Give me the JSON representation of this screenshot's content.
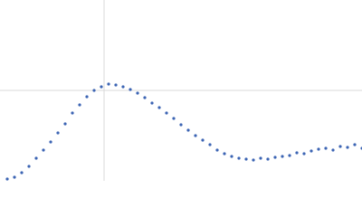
{
  "chart_data": {
    "type": "scatter",
    "color": "#3b64b3",
    "x": [
      8,
      16,
      24,
      32,
      40,
      48,
      56,
      64,
      72,
      80,
      88,
      96,
      104,
      112,
      120,
      128,
      136,
      144,
      152,
      160,
      168,
      176,
      184,
      192,
      200,
      208,
      216,
      224,
      232,
      240,
      248,
      256,
      264,
      272,
      280,
      288,
      296,
      304,
      312,
      320,
      328,
      336,
      344,
      352,
      360,
      368,
      376,
      384,
      392,
      400
    ],
    "y": [
      2,
      4,
      9,
      16,
      25,
      34,
      43,
      53,
      63,
      75,
      84,
      93,
      100,
      104,
      107,
      106,
      104,
      101,
      97,
      92,
      86,
      81,
      75,
      69,
      62,
      56,
      50,
      45,
      40,
      34,
      30,
      27,
      25,
      24,
      23,
      25,
      24,
      26,
      27,
      28,
      31,
      30,
      33,
      35,
      36,
      34,
      38,
      37,
      40,
      36
    ],
    "xlim": [
      0,
      400
    ],
    "ylim": [
      0,
      200
    ],
    "xticks": [
      115
    ],
    "yticks": [
      100
    ],
    "grid": true
  }
}
